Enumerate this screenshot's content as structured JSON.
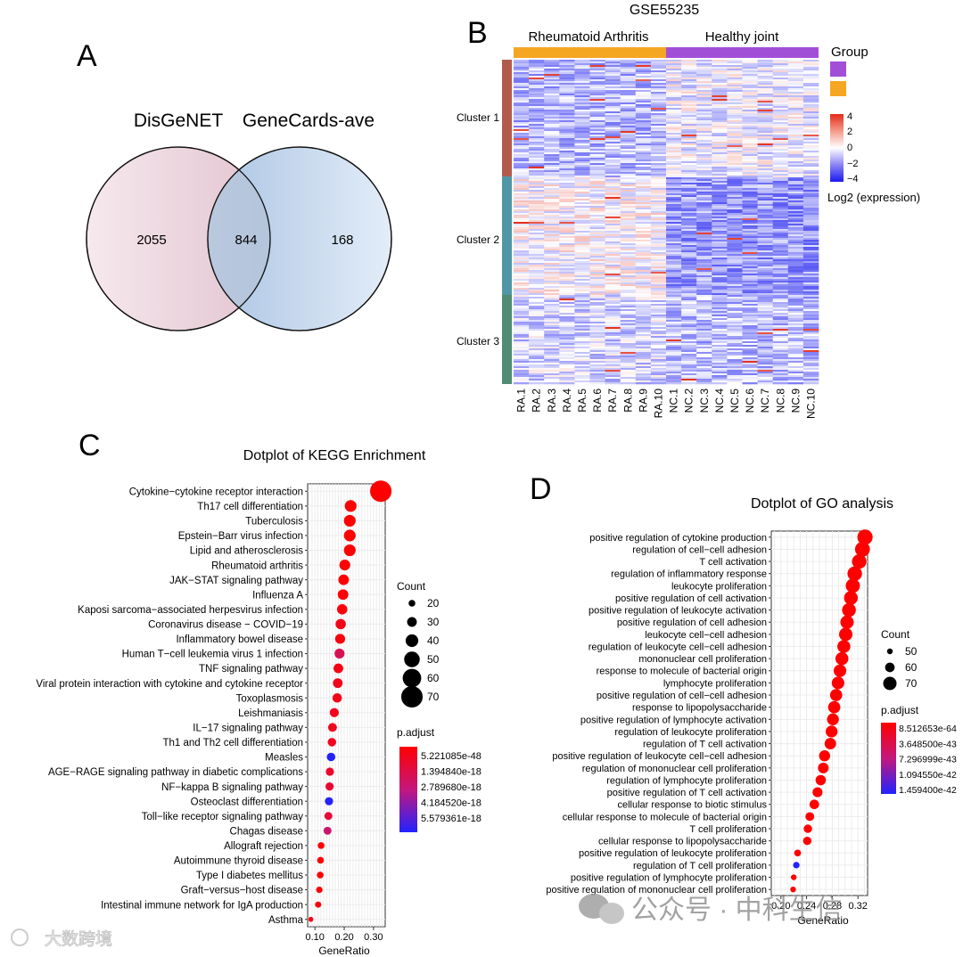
{
  "panels": {
    "A": {
      "letter": "A",
      "set_left": "DisGeNET",
      "set_right": "GeneCards-ave",
      "left_only": "2055",
      "overlap": "844",
      "right_only": "168",
      "colors": {
        "left": "#ead3dc",
        "right": "#c8daee"
      }
    },
    "B": {
      "letter": "B",
      "title": "GSE55235",
      "group_labels": [
        "Rheumatoid Arthritis",
        "Healthy joint"
      ],
      "group_colors": {
        "ra": "#f5a623",
        "hj": "#a24fd8"
      },
      "legend_group_title": "Group",
      "legend_scale_ticks": [
        "4",
        "2",
        "0",
        "−2",
        "−4"
      ],
      "legend_scale_title": "Log2 (expression)",
      "clusters": [
        "Cluster 1",
        "Cluster 2",
        "Cluster 3"
      ],
      "cluster_colors": [
        "#b35a4f",
        "#4f97a6",
        "#4e8c73"
      ],
      "samples": [
        "RA.1",
        "RA.2",
        "RA.3",
        "RA.4",
        "RA.5",
        "RA.6",
        "RA.7",
        "RA.8",
        "RA.9",
        "RA.10",
        "NC.1",
        "NC.2",
        "NC.3",
        "NC.4",
        "NC.5",
        "NC.6",
        "NC.7",
        "NC.8",
        "NC.9",
        "NC.10"
      ]
    },
    "C": {
      "letter": "C",
      "title": "Dotplot of KEGG Enrichment",
      "count_title": "Count",
      "count_ticks": [
        "20",
        "30",
        "40",
        "50",
        "60",
        "70"
      ],
      "padj_title": "p.adjust",
      "padj_ticks": [
        "5.221085e-48",
        "1.394840e-18",
        "2.789680e-18",
        "4.184520e-18",
        "5.579361e-18"
      ],
      "xlabel": "GeneRatio"
    },
    "D": {
      "letter": "D",
      "title": "Dotplot of GO analysis",
      "count_title": "Count",
      "count_ticks": [
        "50",
        "60",
        "70"
      ],
      "padj_title": "p.adjust",
      "padj_ticks": [
        "8.512653e-64",
        "3.648500e-43",
        "7.296999e-43",
        "1.094550e-42",
        "1.459400e-42"
      ],
      "xlabel": "GeneRatio"
    }
  },
  "watermarks": {
    "left": "大数跨境",
    "right": "公众号 · 中科生信"
  },
  "chart_data": [
    {
      "type": "scatter",
      "title": "Dotplot of KEGG Enrichment",
      "xlabel": "GeneRatio",
      "ylabel": "",
      "xlim": [
        0.075,
        0.34
      ],
      "x_ticks": [
        0.1,
        0.2,
        0.3
      ],
      "x_tick_labels": [
        "0.10",
        "0.20",
        "0.30"
      ],
      "terms": [
        "Cytokine−cytokine receptor interaction",
        "Th17 cell differentiation",
        "Tuberculosis",
        "Epstein−Barr virus infection",
        "Lipid and atherosclerosis",
        "Rheumatoid arthritis",
        "JAK−STAT signaling pathway",
        "Influenza A",
        "Kaposi sarcoma−associated herpesvirus infection",
        "Coronavirus disease − COVID−19",
        "Inflammatory bowel disease",
        "Human T−cell leukemia virus 1 infection",
        "TNF signaling pathway",
        "Viral protein interaction with cytokine and cytokine receptor",
        "Toxoplasmosis",
        "Leishmaniasis",
        "IL−17 signaling pathway",
        "Th1 and Th2 cell differentiation",
        "Measles",
        "AGE−RAGE signaling pathway in diabetic complications",
        "NF−kappa B signaling pathway",
        "Osteoclast differentiation",
        "Toll−like receptor signaling pathway",
        "Chagas disease",
        "Allograft rejection",
        "Autoimmune thyroid disease",
        "Type I diabetes mellitus",
        "Graft−versus−host disease",
        "Intestinal immune network for IgA production",
        "Asthma"
      ],
      "gene_ratio": [
        0.325,
        0.222,
        0.219,
        0.219,
        0.219,
        0.202,
        0.198,
        0.196,
        0.193,
        0.188,
        0.186,
        0.184,
        0.18,
        0.178,
        0.176,
        0.166,
        0.16,
        0.158,
        0.155,
        0.151,
        0.15,
        0.148,
        0.146,
        0.143,
        0.121,
        0.119,
        0.118,
        0.115,
        0.111,
        0.086
      ],
      "count": [
        70,
        37,
        37,
        37,
        37,
        34,
        33,
        33,
        32,
        32,
        31,
        31,
        30,
        30,
        29,
        28,
        27,
        26,
        26,
        25,
        25,
        25,
        24,
        24,
        20,
        20,
        20,
        19,
        18,
        14
      ],
      "p_adjust": [
        5.221085e-48,
        4e-20,
        4e-20,
        4e-20,
        4e-20,
        1e-19,
        1e-19,
        1e-19,
        2e-19,
        5e-19,
        3e-19,
        1.9e-18,
        5e-19,
        6e-19,
        5e-19,
        6e-19,
        7e-19,
        7e-19,
        5.579361e-18,
        1e-18,
        1.1e-18,
        5.5e-18,
        1.2e-18,
        2.5e-18,
        1e-19,
        1e-19,
        1e-19,
        1e-19,
        1e-19,
        5e-19
      ],
      "p_adjust_range": [
        5.221085e-48,
        5.579361e-18
      ]
    },
    {
      "type": "scatter",
      "title": "Dotplot of GO analysis",
      "xlabel": "GeneRatio",
      "ylabel": "",
      "xlim": [
        0.185,
        0.335
      ],
      "x_ticks": [
        0.2,
        0.24,
        0.28,
        0.32
      ],
      "x_tick_labels": [
        "0.20",
        "0.24",
        "0.28",
        "0.32"
      ],
      "terms": [
        "positive regulation of cytokine production",
        "regulation of cell−cell adhesion",
        "T cell activation",
        "regulation of inflammatory response",
        "leukocyte proliferation",
        "positive regulation of cell activation",
        "positive regulation of leukocyte activation",
        "positive regulation of cell adhesion",
        "leukocyte cell−cell adhesion",
        "regulation of leukocyte cell−cell adhesion",
        "mononuclear cell proliferation",
        "response to molecule of bacterial origin",
        "lymphocyte proliferation",
        "positive regulation of cell−cell adhesion",
        "response to lipopolysaccharide",
        "positive regulation of lymphocyte activation",
        "regulation of leukocyte proliferation",
        "regulation of T cell activation",
        "positive regulation of leukocyte cell−cell adhesion",
        "regulation of mononuclear cell proliferation",
        "regulation of lymphocyte proliferation",
        "positive regulation of T cell activation",
        "cellular response to biotic stimulus",
        "cellular response to molecule of bacterial origin",
        "T cell proliferation",
        "cellular response to lipopolysaccharide",
        "positive regulation of leukocyte proliferation",
        "regulation of T cell proliferation",
        "positive regulation of lymphocyte proliferation",
        "positive regulation of mononuclear cell proliferation"
      ],
      "gene_ratio": [
        0.331,
        0.327,
        0.322,
        0.315,
        0.312,
        0.309,
        0.306,
        0.303,
        0.301,
        0.298,
        0.295,
        0.292,
        0.289,
        0.286,
        0.283,
        0.281,
        0.279,
        0.277,
        0.268,
        0.266,
        0.262,
        0.257,
        0.252,
        0.245,
        0.242,
        0.241,
        0.226,
        0.224,
        0.22,
        0.219
      ],
      "count": [
        75,
        74,
        73,
        73,
        72,
        71,
        71,
        70,
        70,
        69,
        69,
        68,
        68,
        67,
        67,
        66,
        66,
        65,
        64,
        63,
        62,
        61,
        60,
        58,
        57,
        57,
        53,
        52,
        50,
        50
      ],
      "p_adjust": [
        8.512653e-64,
        1e-60,
        1e-60,
        1e-60,
        1e-60,
        1e-60,
        1e-60,
        1e-60,
        1e-60,
        1e-60,
        1e-60,
        1e-60,
        1e-60,
        1e-60,
        1e-60,
        1e-60,
        1e-60,
        1e-60,
        1e-60,
        1e-60,
        1e-60,
        1e-60,
        1e-60,
        1e-60,
        1e-60,
        1e-60,
        1e-60,
        1.4594e-42,
        1e-50,
        1e-50
      ],
      "p_adjust_range": [
        8.512653e-64,
        1.4594e-42
      ]
    }
  ]
}
